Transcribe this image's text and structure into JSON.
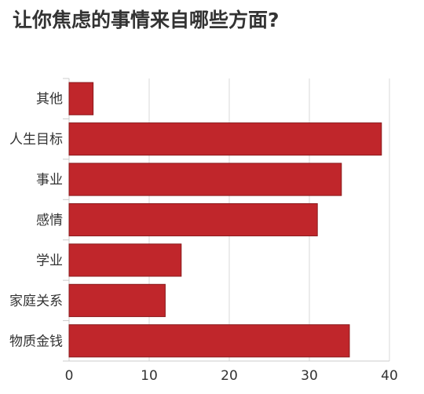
{
  "title": "让你焦虑的事情来自哪些方面?",
  "chart_data": {
    "type": "bar",
    "orientation": "horizontal",
    "title": "让你焦虑的事情来自哪些方面?",
    "categories": [
      "其他",
      "人生目标",
      "事业",
      "感情",
      "学业",
      "家庭关系",
      "物质金钱"
    ],
    "values": [
      3,
      39,
      34,
      31,
      14,
      12,
      35
    ],
    "xlim": [
      0,
      40
    ],
    "xticks": [
      "0",
      "10",
      "20",
      "30",
      "40"
    ],
    "xlabel": "",
    "ylabel": "",
    "grid": "vertical",
    "legend": "none",
    "bar_color": "#c0262b",
    "bar_edge_color": "#8a1a1c"
  }
}
